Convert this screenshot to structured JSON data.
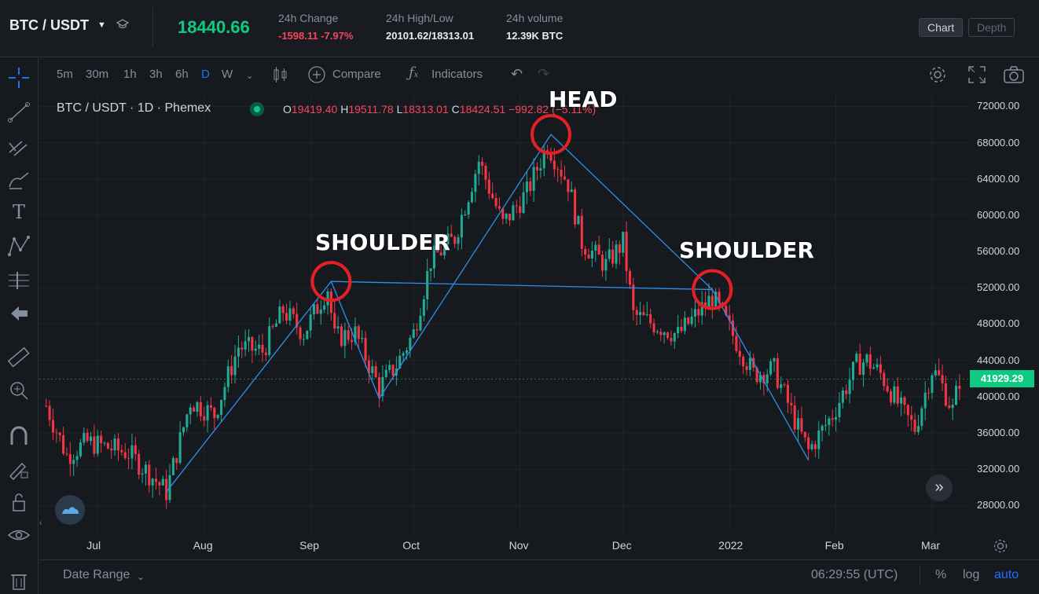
{
  "header": {
    "pair": "BTC / USDT",
    "last_price": "18440.66",
    "change_label": "24h Change",
    "change_value": "-1598.11 -7.97%",
    "highlow_label": "24h High/Low",
    "highlow_value": "20101.62/18313.01",
    "volume_label": "24h volume",
    "volume_value": "12.39K BTC",
    "tabs": [
      "Chart",
      "Depth"
    ],
    "active_tab": "Chart"
  },
  "toolbar": {
    "intervals": [
      "5m",
      "30m",
      "1h",
      "3h",
      "6h",
      "D",
      "W"
    ],
    "active_interval": "D",
    "compare_label": "Compare",
    "indicators_label": "Indicators"
  },
  "legend": {
    "symbol": "BTC / USDT · 1D · Phemex",
    "o_label": "O",
    "o_value": "19419.40",
    "h_label": "H",
    "h_value": "19511.78",
    "l_label": "L",
    "l_value": "18313.01",
    "c_label": "C",
    "c_value": "18424.51",
    "change": "−992.82 (−5.11%)"
  },
  "annotations": {
    "head": "HEAD",
    "left_shoulder": "SHOULDER",
    "right_shoulder": "SHOULDER"
  },
  "chart_data": {
    "type": "candlestick",
    "y_ticks": [
      "72000.00",
      "68000.00",
      "64000.00",
      "60000.00",
      "56000.00",
      "52000.00",
      "48000.00",
      "44000.00",
      "40000.00",
      "36000.00",
      "32000.00",
      "28000.00"
    ],
    "x_ticks": [
      "Jul",
      "Aug",
      "Sep",
      "Oct",
      "Nov",
      "Dec",
      "2022",
      "Feb",
      "Mar"
    ],
    "current_price": "41929.29",
    "ylim": [
      25000,
      73500
    ],
    "pattern_points": [
      {
        "label": "start",
        "x": "Jul 21",
        "y": 29500
      },
      {
        "label": "left-shoulder",
        "x": "Sep 7",
        "y": 52700
      },
      {
        "label": "trough-1",
        "x": "Sep 21",
        "y": 39800
      },
      {
        "label": "head",
        "x": "Nov 10",
        "y": 68900
      },
      {
        "label": "right-shoulder",
        "x": "Dec 27",
        "y": 51800
      },
      {
        "label": "trough-2",
        "x": "Jan 24",
        "y": 33000
      }
    ],
    "neckline": [
      {
        "x": "Sep 7",
        "y": 52700
      },
      {
        "x": "Dec 27",
        "y": 51800
      }
    ],
    "price_path": [
      [
        "Jun 16",
        39000
      ],
      [
        "Jun 22",
        33500
      ],
      [
        "Jun 28",
        35000
      ],
      [
        "Jul 3",
        34500
      ],
      [
        "Jul 10",
        33800
      ],
      [
        "Jul 16",
        31500
      ],
      [
        "Jul 21",
        29500
      ],
      [
        "Jul 28",
        39500
      ],
      [
        "Aug 4",
        38000
      ],
      [
        "Aug 11",
        45500
      ],
      [
        "Aug 18",
        45000
      ],
      [
        "Aug 24",
        49500
      ],
      [
        "Aug 30",
        47000
      ],
      [
        "Sep 6",
        52000
      ],
      [
        "Sep 8",
        46500
      ],
      [
        "Sep 14",
        47000
      ],
      [
        "Sep 21",
        41000
      ],
      [
        "Sep 26",
        43500
      ],
      [
        "Oct 1",
        47000
      ],
      [
        "Oct 6",
        55000
      ],
      [
        "Oct 13",
        57500
      ],
      [
        "Oct 20",
        66000
      ],
      [
        "Oct 27",
        59000
      ],
      [
        "Nov 3",
        62500
      ],
      [
        "Nov 9",
        67800
      ],
      [
        "Nov 15",
        63500
      ],
      [
        "Nov 19",
        57000
      ],
      [
        "Nov 26",
        54500
      ],
      [
        "Dec 1",
        57000
      ],
      [
        "Dec 4",
        49000
      ],
      [
        "Dec 10",
        48000
      ],
      [
        "Dec 17",
        46800
      ],
      [
        "Dec 27",
        51000
      ],
      [
        "Jan 1",
        47500
      ],
      [
        "Jan 8",
        42500
      ],
      [
        "Jan 14",
        43000
      ],
      [
        "Jan 21",
        36500
      ],
      [
        "Jan 24",
        34000
      ],
      [
        "Jan 31",
        38000
      ],
      [
        "Feb 7",
        43500
      ],
      [
        "Feb 10",
        44000
      ],
      [
        "Feb 14",
        42500
      ],
      [
        "Feb 21",
        38000
      ],
      [
        "Feb 24",
        36500
      ],
      [
        "Mar 1",
        43000
      ],
      [
        "Mar 3",
        42000
      ],
      [
        "Mar 7",
        38500
      ],
      [
        "Mar 9",
        41900
      ]
    ]
  },
  "bottom": {
    "date_range_label": "Date Range",
    "clock": "06:29:55 (UTC)",
    "percent_label": "%",
    "log_label": "log",
    "auto_label": "auto"
  },
  "colors": {
    "up": "#22ab94",
    "down": "#f23645",
    "pattern_line": "#2c8ff0",
    "circle": "#e51f26",
    "accent": "#1e6fff"
  }
}
